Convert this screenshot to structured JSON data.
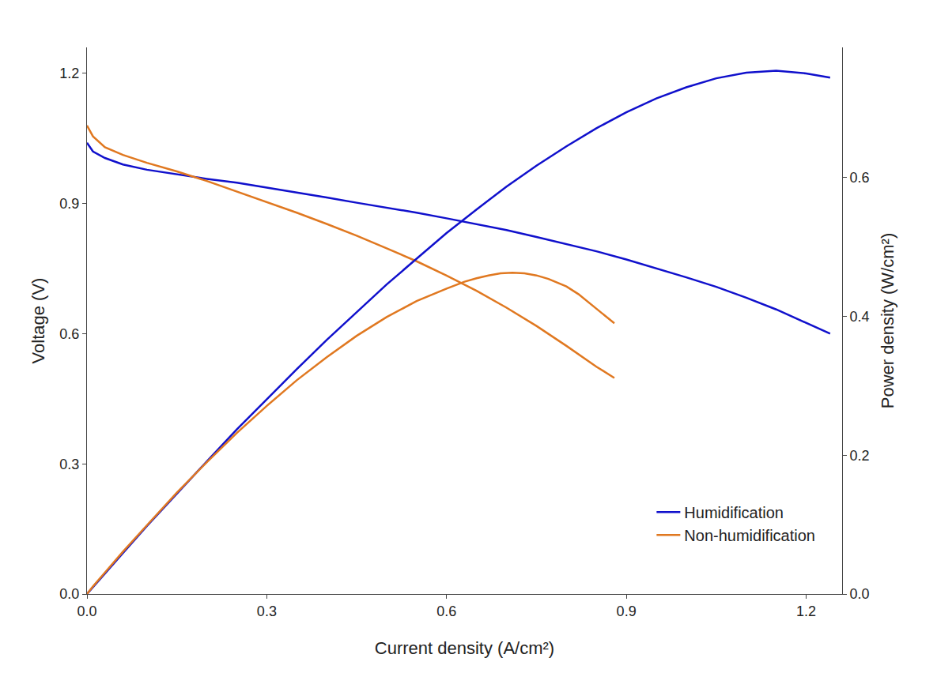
{
  "chart_data": {
    "type": "line",
    "xlabel": "Current density (A/cm²)",
    "ylabel": "Voltage (V)",
    "y2label": "Power density (W/cm²)",
    "xlim": [
      0.0,
      1.26
    ],
    "xticks": [
      {
        "value": 0.0,
        "label": "0.0"
      },
      0.3,
      0.6,
      0.9,
      1.2
    ],
    "ylim": [
      0.0,
      1.26
    ],
    "yticks": [
      {
        "value": 0.0,
        "label": "0.0"
      },
      0.3,
      0.6,
      0.9,
      1.2
    ],
    "y2lim": [
      0.0,
      0.7875
    ],
    "y2ticks": [
      {
        "value": 0.0,
        "label": "0.0"
      },
      0.2,
      0.4,
      0.6
    ],
    "grid": false,
    "legend": "lower right",
    "series": [
      {
        "name": "Humidification",
        "color": "#1010CC",
        "x": [
          0.0,
          0.01,
          0.03,
          0.06,
          0.1,
          0.15,
          0.2,
          0.25,
          0.3,
          0.35,
          0.4,
          0.45,
          0.5,
          0.55,
          0.6,
          0.65,
          0.7,
          0.75,
          0.8,
          0.85,
          0.9,
          0.95,
          1.0,
          1.05,
          1.1,
          1.15,
          1.2,
          1.24
        ],
        "values": [
          1.04,
          1.02,
          1.005,
          0.99,
          0.978,
          0.967,
          0.957,
          0.948,
          0.937,
          0.926,
          0.914,
          0.902,
          0.891,
          0.879,
          0.866,
          0.853,
          0.839,
          0.823,
          0.807,
          0.79,
          0.771,
          0.751,
          0.73,
          0.708,
          0.683,
          0.656,
          0.625,
          0.6
        ]
      },
      {
        "name": "Non-humidification",
        "color": "#E07820",
        "x": [
          0.0,
          0.01,
          0.03,
          0.06,
          0.1,
          0.15,
          0.2,
          0.25,
          0.3,
          0.35,
          0.4,
          0.45,
          0.5,
          0.55,
          0.6,
          0.65,
          0.7,
          0.75,
          0.8,
          0.85,
          0.88
        ],
        "values": [
          1.08,
          1.055,
          1.03,
          1.012,
          0.994,
          0.974,
          0.952,
          0.928,
          0.904,
          0.879,
          0.853,
          0.826,
          0.797,
          0.767,
          0.734,
          0.699,
          0.66,
          0.618,
          0.572,
          0.524,
          0.498
        ]
      },
      {
        "color": "#1010CC",
        "axis": "y2",
        "x": [
          0.0,
          0.01,
          0.03,
          0.06,
          0.1,
          0.15,
          0.2,
          0.25,
          0.3,
          0.35,
          0.4,
          0.45,
          0.5,
          0.55,
          0.6,
          0.65,
          0.7,
          0.75,
          0.8,
          0.85,
          0.9,
          0.95,
          1.0,
          1.05,
          1.1,
          1.15,
          1.2,
          1.24
        ],
        "values": [
          0.0,
          0.01,
          0.03,
          0.059,
          0.098,
          0.145,
          0.191,
          0.237,
          0.281,
          0.324,
          0.366,
          0.406,
          0.446,
          0.483,
          0.52,
          0.554,
          0.587,
          0.617,
          0.645,
          0.671,
          0.694,
          0.714,
          0.73,
          0.743,
          0.751,
          0.754,
          0.75,
          0.744
        ]
      },
      {
        "color": "#E07820",
        "axis": "y2",
        "x": [
          0.0,
          0.01,
          0.03,
          0.06,
          0.1,
          0.15,
          0.2,
          0.25,
          0.3,
          0.35,
          0.4,
          0.45,
          0.5,
          0.55,
          0.6,
          0.63,
          0.65,
          0.67,
          0.69,
          0.71,
          0.73,
          0.75,
          0.77,
          0.8,
          0.82,
          0.85,
          0.88
        ],
        "values": [
          0.0,
          0.011,
          0.031,
          0.061,
          0.099,
          0.146,
          0.19,
          0.232,
          0.271,
          0.308,
          0.341,
          0.372,
          0.399,
          0.422,
          0.44,
          0.45,
          0.455,
          0.459,
          0.462,
          0.463,
          0.462,
          0.459,
          0.454,
          0.443,
          0.432,
          0.411,
          0.39
        ]
      }
    ]
  }
}
